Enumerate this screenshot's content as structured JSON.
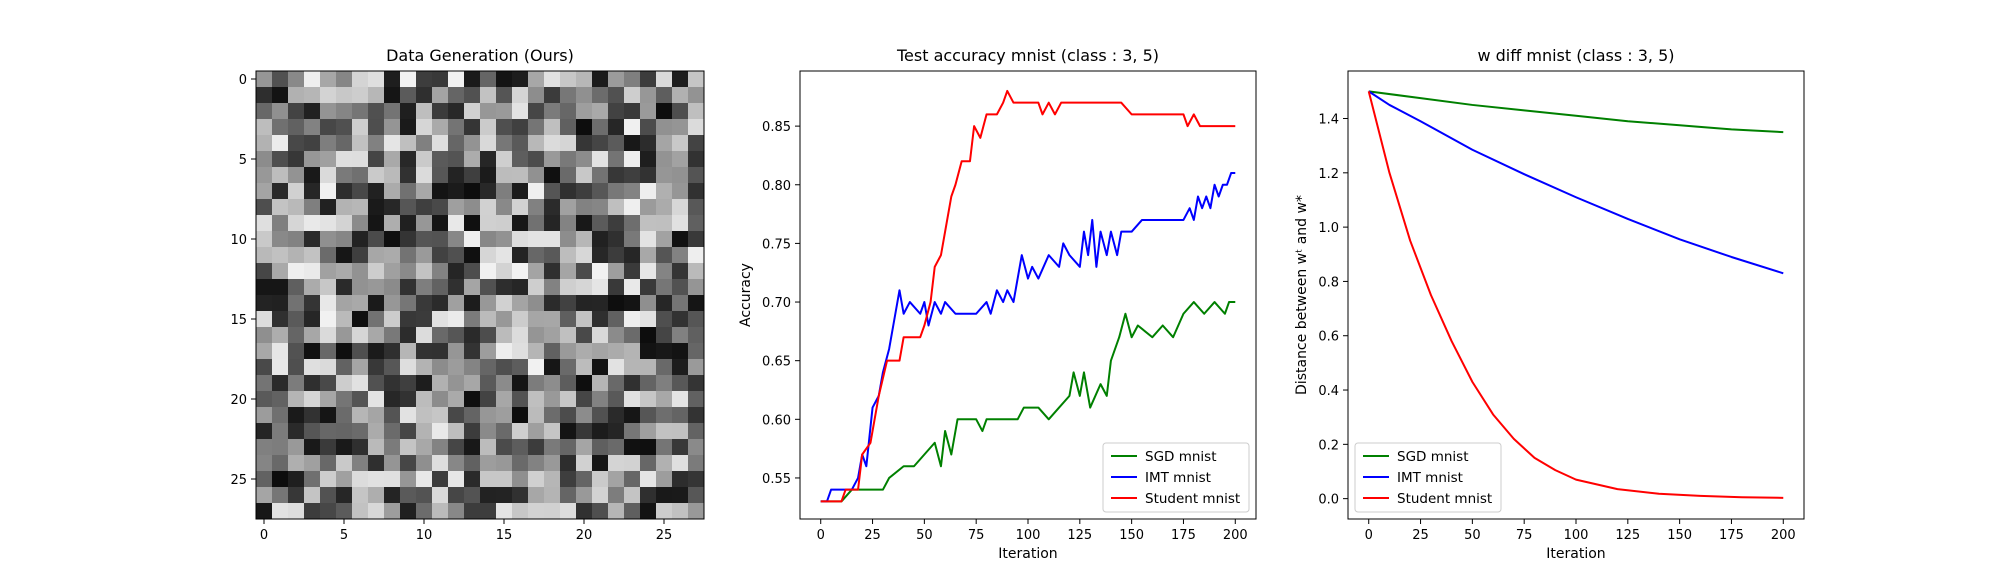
{
  "figure": {
    "panels": [
      {
        "title": "Data Generation (Ours)",
        "xticks": [
          "0",
          "5",
          "10",
          "15",
          "20",
          "25"
        ],
        "yticks": [
          "0",
          "5",
          "10",
          "15",
          "20",
          "25"
        ]
      },
      {
        "title": "Test accuracy mnist (class : 3, 5)",
        "xlabel": "Iteration",
        "ylabel": "Accuracy",
        "xticks": [
          "0",
          "25",
          "50",
          "75",
          "100",
          "125",
          "150",
          "175",
          "200"
        ],
        "yticks": [
          "0.55",
          "0.60",
          "0.65",
          "0.70",
          "0.75",
          "0.80",
          "0.85"
        ]
      },
      {
        "title": "w diff mnist (class : 3, 5)",
        "xlabel": "Iteration",
        "ylabel": "Distance between wᵗ and w*",
        "xticks": [
          "0",
          "25",
          "50",
          "75",
          "100",
          "125",
          "150",
          "175",
          "200"
        ],
        "yticks": [
          "0.0",
          "0.2",
          "0.4",
          "0.6",
          "0.8",
          "1.0",
          "1.2",
          "1.4"
        ]
      }
    ],
    "legend": [
      "SGD mnist",
      "IMT mnist",
      "Student mnist"
    ]
  },
  "chart_data": [
    {
      "type": "heatmap",
      "title": "Data Generation (Ours)",
      "rows": 28,
      "cols": 28,
      "colormap": "gray",
      "xlim": [
        -0.5,
        27.5
      ],
      "ylim": [
        27.5,
        -0.5
      ],
      "values_seed": 7,
      "value_range": [
        0.05,
        0.95
      ]
    },
    {
      "type": "line",
      "title": "Test accuracy mnist (class : 3, 5)",
      "xlabel": "Iteration",
      "ylabel": "Accuracy",
      "xlim": [
        -10,
        210
      ],
      "ylim": [
        0.515,
        0.897
      ],
      "grid": false,
      "legend_position": "lower-right",
      "series": [
        {
          "name": "SGD mnist",
          "color": "#008000",
          "points": [
            [
              0,
              0.53
            ],
            [
              10,
              0.53
            ],
            [
              15,
              0.54
            ],
            [
              30,
              0.54
            ],
            [
              33,
              0.55
            ],
            [
              40,
              0.56
            ],
            [
              45,
              0.56
            ],
            [
              50,
              0.57
            ],
            [
              55,
              0.58
            ],
            [
              58,
              0.56
            ],
            [
              60,
              0.59
            ],
            [
              63,
              0.57
            ],
            [
              66,
              0.6
            ],
            [
              75,
              0.6
            ],
            [
              78,
              0.59
            ],
            [
              80,
              0.6
            ],
            [
              95,
              0.6
            ],
            [
              98,
              0.61
            ],
            [
              105,
              0.61
            ],
            [
              110,
              0.6
            ],
            [
              115,
              0.61
            ],
            [
              120,
              0.62
            ],
            [
              122,
              0.64
            ],
            [
              125,
              0.62
            ],
            [
              127,
              0.64
            ],
            [
              130,
              0.61
            ],
            [
              135,
              0.63
            ],
            [
              138,
              0.62
            ],
            [
              140,
              0.65
            ],
            [
              144,
              0.67
            ],
            [
              147,
              0.69
            ],
            [
              150,
              0.67
            ],
            [
              153,
              0.68
            ],
            [
              160,
              0.67
            ],
            [
              165,
              0.68
            ],
            [
              170,
              0.67
            ],
            [
              175,
              0.69
            ],
            [
              180,
              0.7
            ],
            [
              185,
              0.69
            ],
            [
              190,
              0.7
            ],
            [
              195,
              0.69
            ],
            [
              197,
              0.7
            ],
            [
              200,
              0.7
            ]
          ]
        },
        {
          "name": "IMT mnist",
          "color": "#0000ff",
          "points": [
            [
              0,
              0.53
            ],
            [
              3,
              0.53
            ],
            [
              5,
              0.54
            ],
            [
              15,
              0.54
            ],
            [
              18,
              0.55
            ],
            [
              20,
              0.57
            ],
            [
              22,
              0.56
            ],
            [
              25,
              0.61
            ],
            [
              28,
              0.62
            ],
            [
              30,
              0.64
            ],
            [
              33,
              0.66
            ],
            [
              35,
              0.68
            ],
            [
              38,
              0.71
            ],
            [
              40,
              0.69
            ],
            [
              43,
              0.7
            ],
            [
              48,
              0.69
            ],
            [
              50,
              0.7
            ],
            [
              52,
              0.68
            ],
            [
              55,
              0.7
            ],
            [
              58,
              0.69
            ],
            [
              60,
              0.7
            ],
            [
              65,
              0.69
            ],
            [
              75,
              0.69
            ],
            [
              80,
              0.7
            ],
            [
              82,
              0.69
            ],
            [
              85,
              0.71
            ],
            [
              88,
              0.7
            ],
            [
              90,
              0.71
            ],
            [
              93,
              0.7
            ],
            [
              97,
              0.74
            ],
            [
              100,
              0.72
            ],
            [
              102,
              0.73
            ],
            [
              105,
              0.72
            ],
            [
              110,
              0.74
            ],
            [
              115,
              0.73
            ],
            [
              117,
              0.75
            ],
            [
              120,
              0.74
            ],
            [
              125,
              0.73
            ],
            [
              127,
              0.76
            ],
            [
              129,
              0.74
            ],
            [
              131,
              0.77
            ],
            [
              133,
              0.73
            ],
            [
              135,
              0.76
            ],
            [
              138,
              0.74
            ],
            [
              140,
              0.76
            ],
            [
              143,
              0.74
            ],
            [
              145,
              0.76
            ],
            [
              150,
              0.76
            ],
            [
              155,
              0.77
            ],
            [
              170,
              0.77
            ],
            [
              175,
              0.77
            ],
            [
              178,
              0.78
            ],
            [
              180,
              0.77
            ],
            [
              182,
              0.79
            ],
            [
              184,
              0.78
            ],
            [
              186,
              0.79
            ],
            [
              188,
              0.78
            ],
            [
              190,
              0.8
            ],
            [
              192,
              0.79
            ],
            [
              194,
              0.8
            ],
            [
              196,
              0.8
            ],
            [
              198,
              0.81
            ],
            [
              200,
              0.81
            ]
          ]
        },
        {
          "name": "Student mnist",
          "color": "#ff0000",
          "points": [
            [
              0,
              0.53
            ],
            [
              10,
              0.53
            ],
            [
              12,
              0.54
            ],
            [
              18,
              0.54
            ],
            [
              20,
              0.57
            ],
            [
              24,
              0.58
            ],
            [
              28,
              0.62
            ],
            [
              32,
              0.65
            ],
            [
              38,
              0.65
            ],
            [
              40,
              0.67
            ],
            [
              48,
              0.67
            ],
            [
              50,
              0.68
            ],
            [
              53,
              0.7
            ],
            [
              55,
              0.73
            ],
            [
              58,
              0.74
            ],
            [
              60,
              0.76
            ],
            [
              63,
              0.79
            ],
            [
              65,
              0.8
            ],
            [
              68,
              0.82
            ],
            [
              72,
              0.82
            ],
            [
              74,
              0.85
            ],
            [
              77,
              0.84
            ],
            [
              80,
              0.86
            ],
            [
              85,
              0.86
            ],
            [
              88,
              0.87
            ],
            [
              90,
              0.88
            ],
            [
              93,
              0.87
            ],
            [
              105,
              0.87
            ],
            [
              107,
              0.86
            ],
            [
              110,
              0.87
            ],
            [
              113,
              0.86
            ],
            [
              116,
              0.87
            ],
            [
              145,
              0.87
            ],
            [
              150,
              0.86
            ],
            [
              175,
              0.86
            ],
            [
              177,
              0.85
            ],
            [
              180,
              0.86
            ],
            [
              183,
              0.85
            ],
            [
              200,
              0.85
            ]
          ]
        }
      ]
    },
    {
      "type": "line",
      "title": "w diff mnist (class : 3, 5)",
      "xlabel": "Iteration",
      "ylabel": "Distance between wᵗ and w*",
      "xlim": [
        -10,
        210
      ],
      "ylim": [
        -0.075,
        1.575
      ],
      "grid": false,
      "legend_position": "lower-left",
      "series": [
        {
          "name": "SGD mnist",
          "color": "#008000",
          "points": [
            [
              0,
              1.5
            ],
            [
              25,
              1.475
            ],
            [
              50,
              1.45
            ],
            [
              75,
              1.43
            ],
            [
              100,
              1.41
            ],
            [
              125,
              1.39
            ],
            [
              150,
              1.375
            ],
            [
              175,
              1.36
            ],
            [
              200,
              1.35
            ]
          ]
        },
        {
          "name": "IMT mnist",
          "color": "#0000ff",
          "points": [
            [
              0,
              1.5
            ],
            [
              10,
              1.45
            ],
            [
              25,
              1.39
            ],
            [
              50,
              1.285
            ],
            [
              75,
              1.195
            ],
            [
              100,
              1.11
            ],
            [
              125,
              1.03
            ],
            [
              150,
              0.955
            ],
            [
              175,
              0.89
            ],
            [
              200,
              0.83
            ]
          ]
        },
        {
          "name": "Student mnist",
          "color": "#ff0000",
          "points": [
            [
              0,
              1.5
            ],
            [
              10,
              1.2
            ],
            [
              20,
              0.95
            ],
            [
              30,
              0.75
            ],
            [
              40,
              0.58
            ],
            [
              50,
              0.43
            ],
            [
              60,
              0.31
            ],
            [
              70,
              0.22
            ],
            [
              80,
              0.15
            ],
            [
              90,
              0.105
            ],
            [
              100,
              0.07
            ],
            [
              120,
              0.035
            ],
            [
              140,
              0.018
            ],
            [
              160,
              0.01
            ],
            [
              180,
              0.005
            ],
            [
              200,
              0.003
            ]
          ]
        }
      ]
    }
  ]
}
